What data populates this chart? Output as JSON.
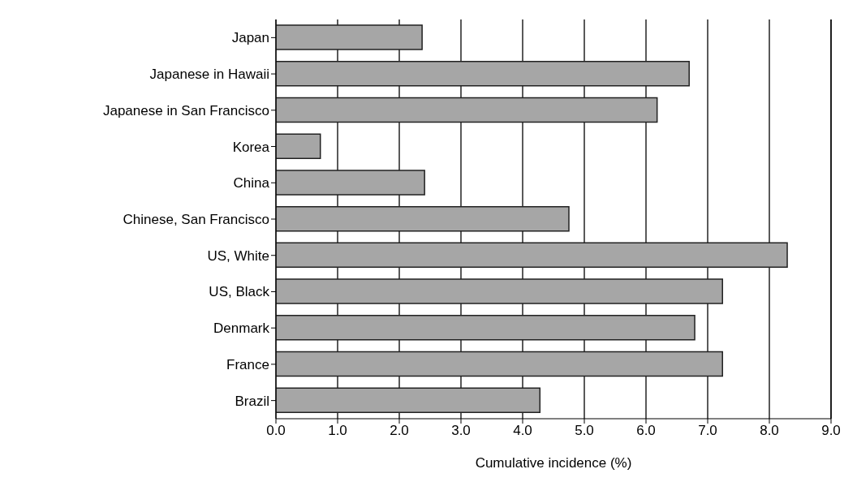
{
  "chart_data": {
    "type": "bar",
    "orientation": "horizontal",
    "xlabel": "Cumulative incidence (%)",
    "categories": [
      "Japan",
      "Japanese in Hawaii",
      "Japanese in San Francisco",
      "Korea",
      "China",
      "Chinese, San Francisco",
      "US, White",
      "US, Black",
      "Denmark",
      "France",
      "Brazil"
    ],
    "values": [
      2.37,
      6.7,
      6.18,
      0.72,
      2.41,
      4.75,
      8.29,
      7.24,
      6.79,
      7.24,
      4.28
    ],
    "color": "#a6a6a6",
    "xlim": [
      0,
      9
    ],
    "xticks": [
      {
        "value": 0,
        "label": "0.0"
      },
      {
        "value": 1,
        "label": "1.0"
      },
      {
        "value": 2,
        "label": "2.0"
      },
      {
        "value": 3,
        "label": "3.0"
      },
      {
        "value": 4,
        "label": "4.0"
      },
      {
        "value": 5,
        "label": "5.0"
      },
      {
        "value": 6,
        "label": "6.0"
      },
      {
        "value": 7,
        "label": "7.0"
      },
      {
        "value": 8,
        "label": "8.0"
      },
      {
        "value": 9,
        "label": "9.0"
      }
    ],
    "grid": "x"
  }
}
